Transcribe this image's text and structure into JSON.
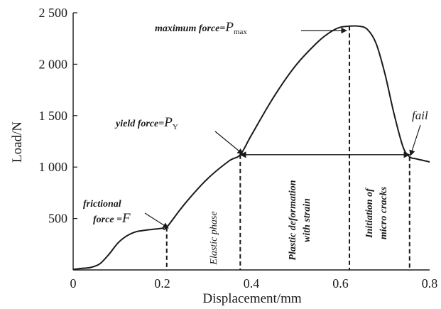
{
  "chart_data": {
    "type": "line",
    "xlabel": "Displacement/mm",
    "ylabel": "Load/N",
    "xlim": [
      0,
      0.8
    ],
    "ylim": [
      0,
      2500
    ],
    "x_ticks": [
      {
        "value": 0,
        "label": "0"
      },
      {
        "value": 0.2,
        "label": "0.2"
      },
      {
        "value": 0.4,
        "label": "0.4"
      },
      {
        "value": 0.6,
        "label": "0.6"
      },
      {
        "value": 0.8,
        "label": "0.8"
      }
    ],
    "y_ticks": [
      {
        "value": 500,
        "label": "500"
      },
      {
        "value": 1000,
        "label": "1 000"
      },
      {
        "value": 1500,
        "label": "1 500"
      },
      {
        "value": 2000,
        "label": "2 000"
      },
      {
        "value": 2500,
        "label": "2 500"
      }
    ],
    "grid": false,
    "line_color": "#1a1a1a",
    "series": [
      {
        "x": [
          0,
          0.02,
          0.04,
          0.06,
          0.08,
          0.1,
          0.12,
          0.14,
          0.16,
          0.18,
          0.2,
          0.21,
          0.25,
          0.3,
          0.35,
          0.375,
          0.4,
          0.45,
          0.5,
          0.55,
          0.58,
          0.6,
          0.62,
          0.64,
          0.66,
          0.68,
          0.7,
          0.72,
          0.74,
          0.755,
          0.77,
          0.8
        ],
        "y": [
          5,
          15,
          25,
          60,
          150,
          260,
          330,
          370,
          385,
          395,
          405,
          415,
          640,
          880,
          1060,
          1120,
          1310,
          1680,
          1990,
          2220,
          2320,
          2360,
          2370,
          2370,
          2340,
          2200,
          1900,
          1520,
          1200,
          1100,
          1080,
          1050
        ]
      }
    ],
    "markers": {
      "frictional": {
        "x": 0.21,
        "y": 415
      },
      "yield": {
        "x": 0.375,
        "y": 1120
      },
      "maximum": {
        "x": 0.62,
        "y": 2370
      },
      "fail": {
        "x": 0.755,
        "y": 1100
      }
    },
    "annotations": {
      "frictional_line1": "frictional",
      "frictional_line2": "force =",
      "frictional_symbol": "F",
      "yield_text": "yield force=",
      "yield_symbol": "P",
      "yield_sub": "Y",
      "max_text": "maximum force=",
      "max_symbol": "P",
      "max_sub": "max",
      "fail_text": "fail",
      "phase_elastic": "Elastic phase",
      "phase_plastic_line1": "Plastic deformation",
      "phase_plastic_line2": "with strain",
      "phase_cracks_line1": "Initiation of",
      "phase_cracks_line2": "micro cracks"
    }
  }
}
